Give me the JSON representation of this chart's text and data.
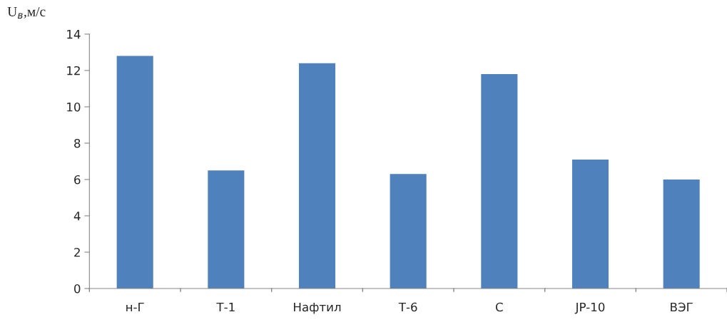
{
  "chart_data": {
    "type": "bar",
    "ylabel": "U$_{в}$,м/с",
    "categories": [
      "н-Г",
      "Т-1",
      "Нафтил",
      "Т-6",
      "С",
      "JP-10",
      "ВЭГ"
    ],
    "values": [
      12.8,
      6.5,
      12.4,
      6.3,
      11.8,
      7.1,
      6.0
    ],
    "color": "#4f81bd",
    "ylim": [
      0,
      14
    ],
    "yticks": [
      0,
      2,
      4,
      6,
      8,
      10,
      12,
      14
    ],
    "grid": false,
    "legend": false
  }
}
